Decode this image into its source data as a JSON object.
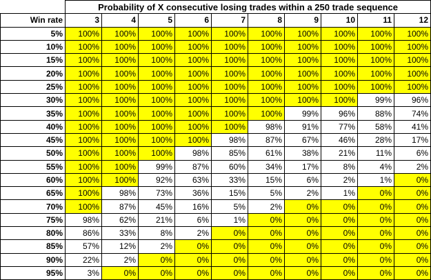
{
  "header": {
    "title": "Probability of X consecutive losing trades within a 250 trade sequence"
  },
  "table": {
    "corner": "Win rate",
    "columns": [
      "3",
      "4",
      "5",
      "6",
      "7",
      "8",
      "9",
      "10",
      "11",
      "12"
    ],
    "rows": [
      [
        "5%",
        "100%",
        "100%",
        "100%",
        "100%",
        "100%",
        "100%",
        "100%",
        "100%",
        "100%",
        "100%"
      ],
      [
        "10%",
        "100%",
        "100%",
        "100%",
        "100%",
        "100%",
        "100%",
        "100%",
        "100%",
        "100%",
        "100%"
      ],
      [
        "15%",
        "100%",
        "100%",
        "100%",
        "100%",
        "100%",
        "100%",
        "100%",
        "100%",
        "100%",
        "100%"
      ],
      [
        "20%",
        "100%",
        "100%",
        "100%",
        "100%",
        "100%",
        "100%",
        "100%",
        "100%",
        "100%",
        "100%"
      ],
      [
        "25%",
        "100%",
        "100%",
        "100%",
        "100%",
        "100%",
        "100%",
        "100%",
        "100%",
        "100%",
        "100%"
      ],
      [
        "30%",
        "100%",
        "100%",
        "100%",
        "100%",
        "100%",
        "100%",
        "100%",
        "100%",
        "99%",
        "96%"
      ],
      [
        "35%",
        "100%",
        "100%",
        "100%",
        "100%",
        "100%",
        "100%",
        "99%",
        "96%",
        "88%",
        "74%"
      ],
      [
        "40%",
        "100%",
        "100%",
        "100%",
        "100%",
        "100%",
        "98%",
        "91%",
        "77%",
        "58%",
        "41%"
      ],
      [
        "45%",
        "100%",
        "100%",
        "100%",
        "100%",
        "98%",
        "87%",
        "67%",
        "46%",
        "28%",
        "17%"
      ],
      [
        "50%",
        "100%",
        "100%",
        "100%",
        "98%",
        "85%",
        "61%",
        "38%",
        "21%",
        "11%",
        "6%"
      ],
      [
        "55%",
        "100%",
        "100%",
        "99%",
        "87%",
        "60%",
        "34%",
        "17%",
        "8%",
        "4%",
        "2%"
      ],
      [
        "60%",
        "100%",
        "100%",
        "92%",
        "63%",
        "33%",
        "15%",
        "6%",
        "2%",
        "1%",
        "0%"
      ],
      [
        "65%",
        "100%",
        "98%",
        "73%",
        "36%",
        "15%",
        "5%",
        "2%",
        "1%",
        "0%",
        "0%"
      ],
      [
        "70%",
        "100%",
        "87%",
        "45%",
        "16%",
        "5%",
        "2%",
        "0%",
        "0%",
        "0%",
        "0%"
      ],
      [
        "75%",
        "98%",
        "62%",
        "21%",
        "6%",
        "1%",
        "0%",
        "0%",
        "0%",
        "0%",
        "0%"
      ],
      [
        "80%",
        "86%",
        "33%",
        "8%",
        "2%",
        "0%",
        "0%",
        "0%",
        "0%",
        "0%",
        "0%"
      ],
      [
        "85%",
        "57%",
        "12%",
        "2%",
        "0%",
        "0%",
        "0%",
        "0%",
        "0%",
        "0%",
        "0%"
      ],
      [
        "90%",
        "22%",
        "2%",
        "0%",
        "0%",
        "0%",
        "0%",
        "0%",
        "0%",
        "0%",
        "0%"
      ],
      [
        "95%",
        "3%",
        "0%",
        "0%",
        "0%",
        "0%",
        "0%",
        "0%",
        "0%",
        "0%",
        "0%"
      ]
    ]
  },
  "highlight_color": "#ffff00"
}
